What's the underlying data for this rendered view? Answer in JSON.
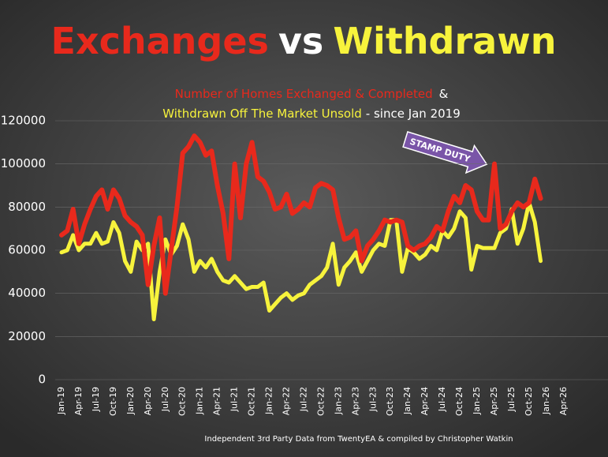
{
  "chart_data": {
    "type": "line",
    "title_parts": [
      {
        "text": "Exchanges",
        "color": "#e8291c"
      },
      {
        "text": "vs",
        "color": "#ffffff"
      },
      {
        "text": "Withdrawn",
        "color": "#f7f33c"
      }
    ],
    "subtitle_joiners": [
      "&",
      "- since Jan 2019"
    ],
    "annotation": "STAMP DUTY",
    "footer": "Independent 3rd Party Data from TwentyEA  & compiled by Christopher Watkin",
    "categories": [
      "Jan-19",
      null,
      null,
      "Apr-19",
      null,
      null,
      "Jul-19",
      null,
      null,
      "Oct-19",
      null,
      null,
      "Jan-20",
      null,
      null,
      "Apr-20",
      null,
      null,
      "Jul-20",
      null,
      null,
      "Oct-20",
      null,
      null,
      "Jan-21",
      null,
      null,
      "Apr-21",
      null,
      null,
      "Jul-21",
      null,
      null,
      "Oct-21",
      null,
      null,
      "Jan-22",
      null,
      null,
      "Apr-22",
      null,
      null,
      "Jul-22",
      null,
      null,
      "Oct-22",
      null,
      null,
      "Jan-23",
      null,
      null,
      "Apr-23",
      null,
      null,
      "Jul-23",
      null,
      null,
      "Oct-23",
      null,
      null,
      "Jan-24",
      null,
      null,
      "Apr-24",
      null,
      null,
      "Jul-24",
      null,
      null,
      "Oct-24",
      null,
      null,
      "Jan-25",
      null,
      null,
      "Apr-25",
      null,
      null,
      "Jul-25",
      null,
      null,
      "Oct-25",
      null,
      null,
      "Jan-26",
      null,
      null,
      "Apr-26"
    ],
    "series": [
      {
        "name": "Withdrawn Off The Market Unsold",
        "color": "#f7f33c",
        "width": 5,
        "values": [
          59000,
          60000,
          67000,
          60000,
          63000,
          63000,
          68000,
          63000,
          64000,
          73000,
          68000,
          55000,
          50000,
          64000,
          60000,
          63000,
          28000,
          50000,
          65000,
          58000,
          62000,
          72000,
          65000,
          50000,
          55000,
          52000,
          56000,
          50000,
          46000,
          45000,
          48000,
          45000,
          42000,
          43000,
          43000,
          45000,
          32000,
          35000,
          38000,
          40000,
          37000,
          39000,
          40000,
          44000,
          46000,
          48000,
          52000,
          63000,
          44000,
          52000,
          55000,
          59000,
          50000,
          55000,
          60000,
          63000,
          62000,
          74000,
          74000,
          50000,
          61000,
          59000,
          56000,
          58000,
          62000,
          60000,
          69000,
          66000,
          70000,
          78000,
          75000,
          51000,
          62000,
          61000,
          61000,
          61000,
          68000,
          70000,
          79000,
          63000,
          70000,
          82000,
          73000,
          55000,
          null,
          null,
          null,
          null
        ]
      },
      {
        "name": "Number of Homes Exchanged & Completed",
        "color": "#e8291c",
        "width": 6,
        "values": [
          67000,
          69000,
          79000,
          63000,
          72000,
          79000,
          85000,
          88000,
          79000,
          88000,
          84000,
          76000,
          73000,
          71000,
          67000,
          44000,
          62000,
          75000,
          40000,
          60000,
          80000,
          105000,
          108000,
          113000,
          110000,
          104000,
          106000,
          90000,
          77000,
          56000,
          100000,
          75000,
          100000,
          110000,
          94000,
          92000,
          87000,
          79000,
          80000,
          86000,
          77000,
          79000,
          82000,
          80000,
          89000,
          91000,
          90000,
          88000,
          75000,
          65000,
          66000,
          69000,
          55000,
          62000,
          65000,
          69000,
          74000,
          73000,
          74000,
          73000,
          62000,
          60000,
          62000,
          63000,
          66000,
          71000,
          69000,
          78000,
          85000,
          82000,
          90000,
          88000,
          78000,
          74000,
          74000,
          100000,
          70000,
          72000,
          78000,
          82000,
          80000,
          82000,
          93000,
          84000,
          null,
          null,
          null,
          null
        ]
      }
    ],
    "ylim": [
      0,
      120000
    ],
    "yticks": [
      0,
      20000,
      40000,
      60000,
      80000,
      100000,
      120000
    ],
    "grid": true
  }
}
